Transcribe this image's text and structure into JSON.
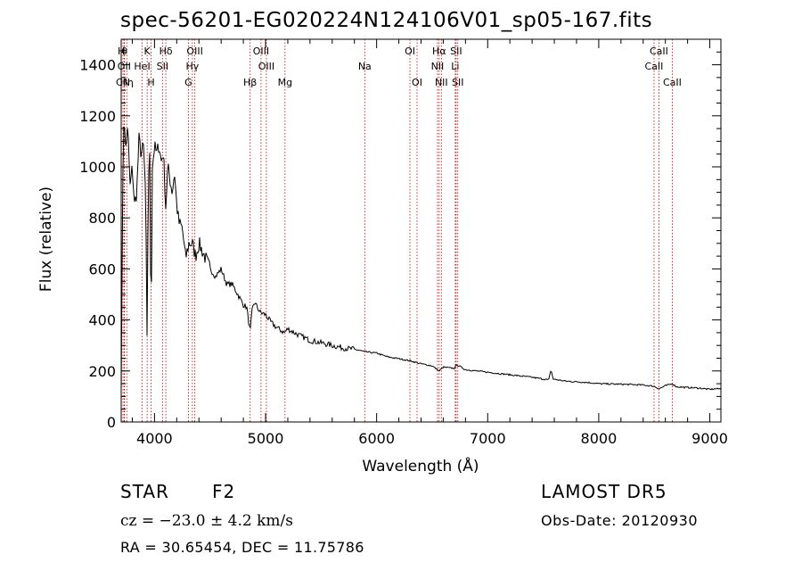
{
  "header": {
    "title": "spec-56201-EG020224N124106V01_sp05-167.fits"
  },
  "footer": {
    "object_class": "STAR",
    "subclass": "F2",
    "survey": "LAMOST DR5",
    "cz": "cz = −23.0 ± 4.2 km/s",
    "obs_date": "Obs-Date: 20120930",
    "radec": "RA =  30.65454, DEC =  11.75786"
  },
  "chart_data": {
    "type": "line",
    "title": "spec-56201-EG020224N124106V01_sp05-167.fits",
    "xlabel": "Wavelength (Å)",
    "ylabel": "Flux (relative)",
    "xlim": [
      3700,
      9100
    ],
    "ylim": [
      0,
      1500
    ],
    "x_ticks": [
      4000,
      5000,
      6000,
      7000,
      8000,
      9000
    ],
    "x_tick_labels": [
      "4000",
      "5000",
      "6000",
      "7000",
      "8000",
      "9000"
    ],
    "y_ticks": [
      0,
      200,
      400,
      600,
      800,
      1000,
      1200,
      1400
    ],
    "y_tick_labels": [
      "0",
      "200",
      "400",
      "600",
      "800",
      "1000",
      "1200",
      "1400"
    ],
    "grid": false,
    "line_color": "#000000",
    "marker_color": "#cc0000",
    "series": [
      {
        "x": [
          3700,
          3710,
          3720,
          3740,
          3760,
          3780,
          3800,
          3820,
          3840,
          3860,
          3880,
          3900,
          3920,
          3933,
          3945,
          3960,
          3968,
          3980,
          4000,
          4020,
          4040,
          4060,
          4080,
          4101,
          4120,
          4140,
          4160,
          4180,
          4200,
          4220,
          4250,
          4280,
          4310,
          4340,
          4370,
          4400,
          4450,
          4500,
          4550,
          4600,
          4650,
          4700,
          4750,
          4800,
          4830,
          4861,
          4880,
          4900,
          4950,
          5000,
          5050,
          5100,
          5170,
          5200,
          5300,
          5400,
          5500,
          5600,
          5700,
          5800,
          5900,
          6000,
          6100,
          6200,
          6300,
          6400,
          6500,
          6563,
          6600,
          6700,
          6720,
          6800,
          6900,
          7000,
          7200,
          7400,
          7550,
          7570,
          7590,
          7700,
          7900,
          8000,
          8200,
          8400,
          8498,
          8542,
          8600,
          8662,
          8700,
          8800,
          8900,
          9000,
          9050
        ],
        "y": [
          150,
          700,
          1200,
          1080,
          1150,
          920,
          1000,
          850,
          900,
          1110,
          1050,
          1080,
          900,
          300,
          980,
          1050,
          280,
          1000,
          1080,
          1050,
          1090,
          1020,
          1060,
          840,
          1000,
          950,
          900,
          980,
          850,
          780,
          760,
          640,
          700,
          700,
          650,
          700,
          650,
          600,
          570,
          600,
          540,
          540,
          500,
          460,
          450,
          350,
          440,
          470,
          430,
          420,
          390,
          370,
          350,
          365,
          340,
          320,
          310,
          300,
          290,
          285,
          275,
          270,
          255,
          248,
          240,
          228,
          220,
          200,
          215,
          210,
          225,
          205,
          200,
          195,
          185,
          175,
          165,
          205,
          168,
          160,
          155,
          150,
          148,
          145,
          140,
          130,
          142,
          150,
          138,
          135,
          133,
          128,
          130
        ]
      }
    ],
    "lines": [
      {
        "label": "H",
        "x": 3701,
        "row": 0
      },
      {
        "label": "θ",
        "x": 3730,
        "row": 0
      },
      {
        "label": "OII",
        "x": 3727,
        "row": 1
      },
      {
        "label": "CN",
        "x": 3716,
        "row": 2
      },
      {
        "label": "Hη",
        "x": 3750,
        "row": 2
      },
      {
        "label": "K",
        "x": 3934,
        "row": 0
      },
      {
        "label": "HeI",
        "x": 3889,
        "row": 1
      },
      {
        "label": "H",
        "x": 3969,
        "row": 2
      },
      {
        "label": "Hδ",
        "x": 4102,
        "row": 0
      },
      {
        "label": "SII",
        "x": 4072,
        "row": 1
      },
      {
        "label": "OIII",
        "x": 4363,
        "row": 0
      },
      {
        "label": "Hγ",
        "x": 4341,
        "row": 1
      },
      {
        "label": "G",
        "x": 4305,
        "row": 2
      },
      {
        "label": "Hβ",
        "x": 4861,
        "row": 2
      },
      {
        "label": "OIII",
        "x": 4959,
        "row": 0
      },
      {
        "label": "OIII",
        "x": 5007,
        "row": 1
      },
      {
        "label": "Mg",
        "x": 5175,
        "row": 2
      },
      {
        "label": "Na",
        "x": 5893,
        "row": 1
      },
      {
        "label": "OI",
        "x": 6300,
        "row": 0
      },
      {
        "label": "OI",
        "x": 6364,
        "row": 2
      },
      {
        "label": "Hα",
        "x": 6563,
        "row": 0
      },
      {
        "label": "NII",
        "x": 6548,
        "row": 1
      },
      {
        "label": "NII",
        "x": 6583,
        "row": 2
      },
      {
        "label": "SII",
        "x": 6716,
        "row": 0
      },
      {
        "label": "Li",
        "x": 6708,
        "row": 1
      },
      {
        "label": "SII",
        "x": 6731,
        "row": 2
      },
      {
        "label": "CaII",
        "x": 8542,
        "row": 0
      },
      {
        "label": "CaII",
        "x": 8498,
        "row": 1
      },
      {
        "label": "CaII",
        "x": 8662,
        "row": 2
      }
    ]
  }
}
